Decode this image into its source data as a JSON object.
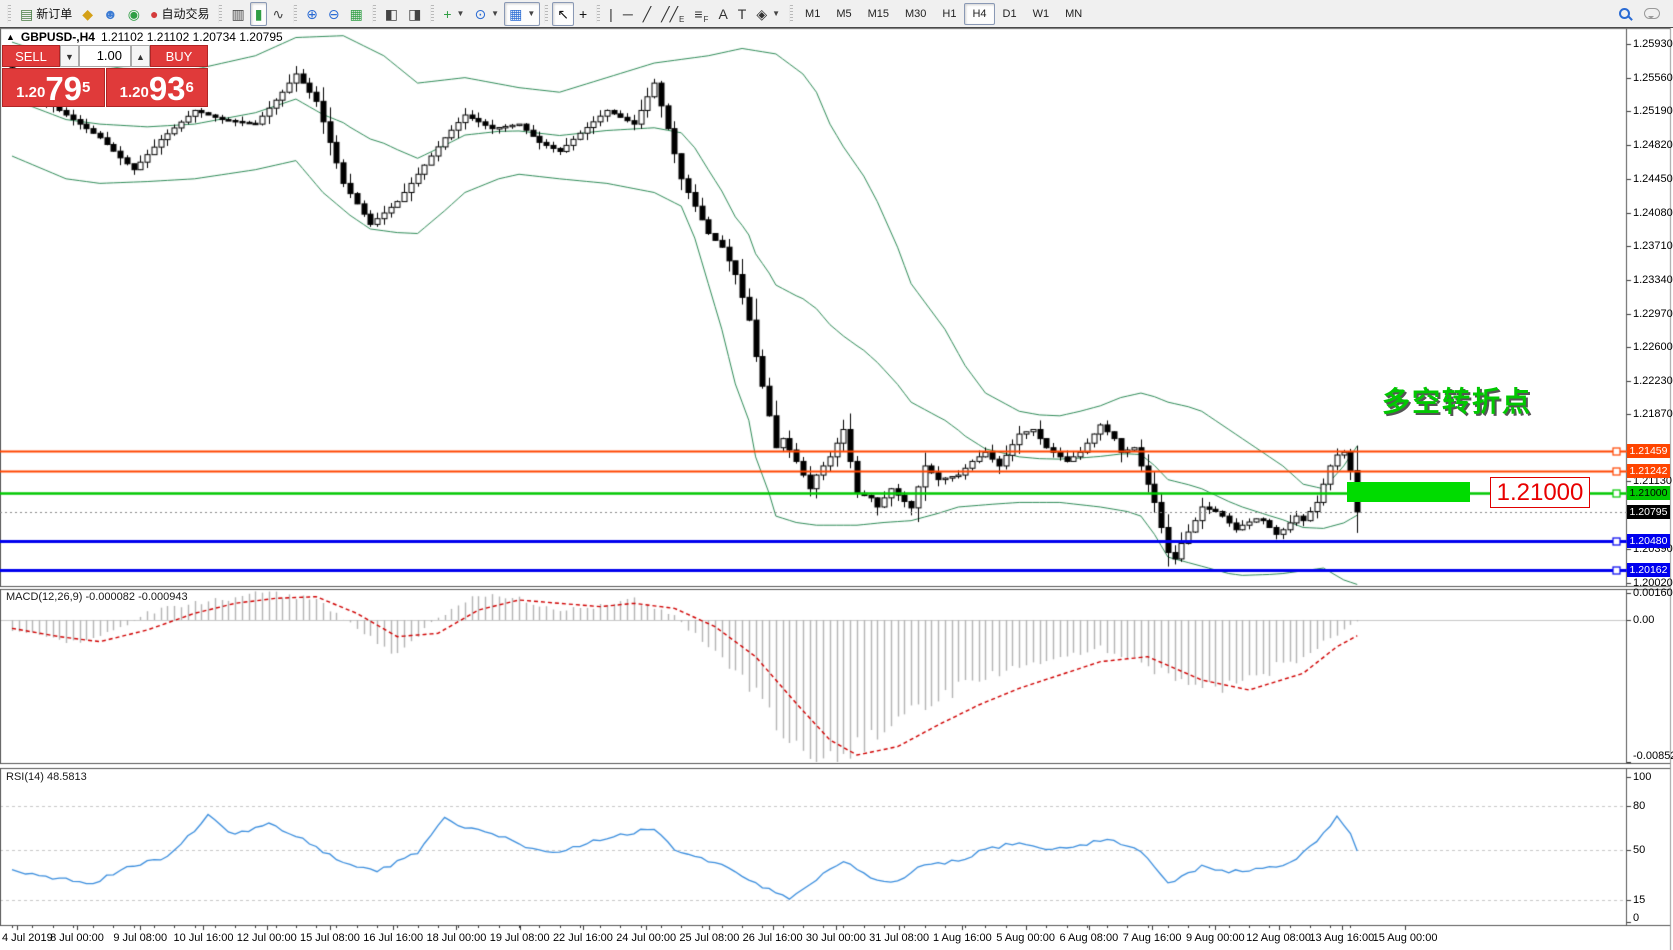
{
  "toolbar": {
    "groups": [
      {
        "items": [
          {
            "name": "new-order",
            "glyph": "▤",
            "color": "#4a7d46",
            "label": "新订单"
          },
          {
            "name": "styles",
            "glyph": "◆",
            "color": "#d4a017"
          },
          {
            "name": "community",
            "glyph": "☻",
            "color": "#3b7bd4"
          },
          {
            "name": "sound",
            "glyph": "◉",
            "color": "#2f9e44"
          },
          {
            "name": "autotrading",
            "glyph": "●",
            "color": "#d43b3b",
            "label": "自动交易"
          }
        ]
      },
      {
        "items": [
          {
            "name": "chart-bars",
            "glyph": "▥",
            "color": "#444"
          },
          {
            "name": "chart-candles",
            "glyph": "▮",
            "color": "#2f9e44",
            "active": true
          },
          {
            "name": "chart-line",
            "glyph": "∿",
            "color": "#444"
          }
        ]
      },
      {
        "items": [
          {
            "name": "zoom-in",
            "glyph": "⊕",
            "color": "#2a6bd4"
          },
          {
            "name": "zoom-out",
            "glyph": "⊖",
            "color": "#2a6bd4"
          },
          {
            "name": "tile-windows",
            "glyph": "▦",
            "color": "#2f9e44"
          }
        ]
      },
      {
        "items": [
          {
            "name": "auto-scroll",
            "glyph": "◧",
            "color": "#444"
          },
          {
            "name": "chart-shift",
            "glyph": "◨",
            "color": "#444"
          }
        ]
      },
      {
        "items": [
          {
            "name": "indicators",
            "glyph": "+",
            "color": "#2f9e44",
            "dropdown": true
          },
          {
            "name": "periods",
            "glyph": "⊙",
            "color": "#2a6bd4",
            "dropdown": true
          },
          {
            "name": "templates",
            "glyph": "▦",
            "color": "#2a6bd4",
            "dropdown": true,
            "active": true
          }
        ]
      },
      {
        "items": [
          {
            "name": "cursor",
            "glyph": "↖",
            "color": "#111",
            "active": true
          },
          {
            "name": "crosshair",
            "glyph": "+",
            "color": "#111"
          }
        ]
      },
      {
        "items": [
          {
            "name": "vertical-line",
            "glyph": "|",
            "color": "#333"
          },
          {
            "name": "horizontal-line",
            "glyph": "─",
            "color": "#333"
          },
          {
            "name": "trendline",
            "glyph": "╱",
            "color": "#333"
          },
          {
            "name": "equidistant-channel",
            "glyph": "╱╱",
            "color": "#333",
            "sub": "E"
          },
          {
            "name": "fibonacci",
            "glyph": "≡",
            "color": "#333",
            "sub": "F"
          },
          {
            "name": "text",
            "glyph": "A",
            "color": "#333"
          },
          {
            "name": "text-label",
            "glyph": "T",
            "color": "#333"
          },
          {
            "name": "arrows",
            "glyph": "◈",
            "color": "#333",
            "dropdown": true
          }
        ]
      }
    ],
    "timeframes": [
      "M1",
      "M5",
      "M15",
      "M30",
      "H1",
      "H4",
      "D1",
      "W1",
      "MN"
    ],
    "active_timeframe": "H4"
  },
  "chart": {
    "title_symbol": "GBPUSD-,H4",
    "title_ohlc": "1.21102 1.21102 1.20734 1.20795",
    "one_click": {
      "sell_label": "SELL",
      "buy_label": "BUY",
      "volume": "1.00",
      "sell_prefix": "1.20",
      "sell_big": "79",
      "sell_sup": "5",
      "buy_prefix": "1.20",
      "buy_big": "93",
      "buy_sup": "6"
    },
    "annotation_text": "多空转折点",
    "price_label_box": "1.21000",
    "current_price_value": 1.20795,
    "current_price_label": "1.20795",
    "levels": [
      {
        "price": 1.21459,
        "color": "#ff4500",
        "line_width": 2,
        "tag_text_color": "#ffffff"
      },
      {
        "price": 1.21242,
        "color": "#ff4500",
        "line_width": 2,
        "tag_text_color": "#ffffff"
      },
      {
        "price": 1.21,
        "color": "#00c800",
        "line_width": 2.5,
        "tag_text_color": "#000000"
      },
      {
        "price": 1.2048,
        "color": "#0000ee",
        "line_width": 3,
        "tag_text_color": "#ffffff"
      },
      {
        "price": 1.20162,
        "color": "#0000ee",
        "line_width": 3,
        "tag_text_color": "#ffffff"
      }
    ],
    "y_ticks": [
      1.2593,
      1.2556,
      1.2519,
      1.2482,
      1.2445,
      1.2408,
      1.2371,
      1.2334,
      1.2297,
      1.226,
      1.2223,
      1.2187,
      1.2113,
      1.2039,
      1.2002
    ]
  },
  "macd": {
    "label": "MACD(12,26,9) -0.000082 -0.000943",
    "scale_values": [
      0.001607,
      0,
      -0.008522
    ]
  },
  "rsi": {
    "label": "RSI(14) 48.5813",
    "scale_values": [
      100,
      80,
      50,
      15,
      0
    ],
    "dashed_levels": [
      80,
      50,
      15
    ]
  },
  "time_axis": [
    "4 Jul 2019",
    "8 Jul 00:00",
    "9 Jul 08:00",
    "10 Jul 16:00",
    "12 Jul 00:00",
    "15 Jul 08:00",
    "16 Jul 16:00",
    "18 Jul 00:00",
    "19 Jul 08:00",
    "22 Jul 16:00",
    "24 Jul 00:00",
    "25 Jul 08:00",
    "26 Jul 16:00",
    "30 Jul 00:00",
    "31 Jul 08:00",
    "1 Aug 16:00",
    "5 Aug 00:00",
    "6 Aug 08:00",
    "7 Aug 16:00",
    "9 Aug 00:00",
    "12 Aug 08:00",
    "13 Aug 16:00",
    "15 Aug 00:00"
  ],
  "colors": {
    "bull_body": "#ffffff",
    "bear_body": "#000000",
    "candle_outline": "#000000",
    "bollinger": "#2e8b57",
    "macd_hist": "#b4b4b4",
    "macd_signal": "#d00000",
    "rsi_line": "#3b8ede",
    "dashed_level": "#c8c8c8",
    "current_line": "#888888",
    "current_tag_bg": "#000000",
    "panel_red": "#e03a3a"
  },
  "chart_data": {
    "type": "candlestick+indicators",
    "symbol": "GBPUSD",
    "timeframe": "H4",
    "bars": 200,
    "y_axis": {
      "min": 1.2002,
      "max": 1.2593
    },
    "price_anchors": [
      [
        0,
        1.2555
      ],
      [
        6,
        1.2525
      ],
      [
        13,
        1.249
      ],
      [
        16,
        1.2468
      ],
      [
        18,
        1.2455
      ],
      [
        22,
        1.2488
      ],
      [
        27,
        1.252
      ],
      [
        31,
        1.251
      ],
      [
        36,
        1.2505
      ],
      [
        40,
        1.254
      ],
      [
        42,
        1.256
      ],
      [
        45,
        1.253
      ],
      [
        49,
        1.244
      ],
      [
        53,
        1.2395
      ],
      [
        57,
        1.242
      ],
      [
        60,
        1.245
      ],
      [
        64,
        1.249
      ],
      [
        67,
        1.2515
      ],
      [
        71,
        1.25
      ],
      [
        75,
        1.2505
      ],
      [
        78,
        1.2485
      ],
      [
        81,
        1.2475
      ],
      [
        84,
        1.2495
      ],
      [
        88,
        1.252
      ],
      [
        92,
        1.2505
      ],
      [
        95,
        1.255
      ],
      [
        97,
        1.25
      ],
      [
        99,
        1.2445
      ],
      [
        101,
        1.2415
      ],
      [
        103,
        1.2385
      ],
      [
        105,
        1.237
      ],
      [
        107,
        1.234
      ],
      [
        109,
        1.229
      ],
      [
        110,
        1.225
      ],
      [
        112,
        1.2185
      ],
      [
        113,
        1.215
      ],
      [
        114,
        1.216
      ],
      [
        116,
        1.2135
      ],
      [
        118,
        1.2105
      ],
      [
        119,
        1.212
      ],
      [
        121,
        1.214
      ],
      [
        123,
        1.217
      ],
      [
        124,
        1.2135
      ],
      [
        125,
        1.21
      ],
      [
        127,
        1.2095
      ],
      [
        128,
        1.2085
      ],
      [
        130,
        1.2105
      ],
      [
        133,
        1.2084
      ],
      [
        135,
        1.213
      ],
      [
        137,
        1.2115
      ],
      [
        140,
        1.212
      ],
      [
        142,
        1.2135
      ],
      [
        144,
        1.2145
      ],
      [
        146,
        1.213
      ],
      [
        149,
        1.2165
      ],
      [
        151,
        1.217
      ],
      [
        153,
        1.215
      ],
      [
        156,
        1.2135
      ],
      [
        158,
        1.2145
      ],
      [
        161,
        1.2175
      ],
      [
        163,
        1.216
      ],
      [
        164,
        1.2145
      ],
      [
        166,
        1.215
      ],
      [
        167,
        1.213
      ],
      [
        169,
        1.209
      ],
      [
        171,
        1.2035
      ],
      [
        172,
        1.2028
      ],
      [
        173,
        1.2045
      ],
      [
        175,
        1.207
      ],
      [
        176,
        1.2085
      ],
      [
        178,
        1.208
      ],
      [
        179,
        1.2075
      ],
      [
        181,
        1.206
      ],
      [
        182,
        1.2065
      ],
      [
        184,
        1.2072
      ],
      [
        185,
        1.207
      ],
      [
        187,
        1.2055
      ],
      [
        188,
        1.206
      ],
      [
        190,
        1.2075
      ],
      [
        191,
        1.207
      ],
      [
        193,
        1.209
      ],
      [
        195,
        1.213
      ],
      [
        196,
        1.2142
      ],
      [
        197,
        1.2145
      ],
      [
        198,
        1.2125
      ],
      [
        199,
        1.20795
      ]
    ],
    "band_upper_anchors": [
      [
        0,
        1.2595
      ],
      [
        8,
        1.2575
      ],
      [
        13,
        1.257
      ],
      [
        20,
        1.2562
      ],
      [
        27,
        1.2565
      ],
      [
        36,
        1.258
      ],
      [
        42,
        1.26
      ],
      [
        49,
        1.2602
      ],
      [
        55,
        1.258
      ],
      [
        60,
        1.255
      ],
      [
        67,
        1.2556
      ],
      [
        75,
        1.2545
      ],
      [
        81,
        1.254
      ],
      [
        88,
        1.2556
      ],
      [
        95,
        1.2572
      ],
      [
        103,
        1.258
      ],
      [
        108,
        1.2588
      ],
      [
        113,
        1.2582
      ],
      [
        117,
        1.256
      ],
      [
        119,
        1.254
      ],
      [
        121,
        1.2505
      ],
      [
        123,
        1.248
      ],
      [
        126,
        1.2448
      ],
      [
        128,
        1.242
      ],
      [
        131,
        1.237
      ],
      [
        133,
        1.233
      ],
      [
        136,
        1.23
      ],
      [
        138,
        1.228
      ],
      [
        141,
        1.224
      ],
      [
        144,
        1.221
      ],
      [
        147,
        1.2198
      ],
      [
        149,
        1.219
      ],
      [
        152,
        1.2186
      ],
      [
        155,
        1.2185
      ],
      [
        158,
        1.219
      ],
      [
        161,
        1.2196
      ],
      [
        164,
        1.2205
      ],
      [
        167,
        1.221
      ],
      [
        169,
        1.2206
      ],
      [
        171,
        1.22
      ],
      [
        174,
        1.2195
      ],
      [
        176,
        1.219
      ],
      [
        179,
        1.2175
      ],
      [
        182,
        1.216
      ],
      [
        185,
        1.2145
      ],
      [
        188,
        1.213
      ],
      [
        191,
        1.211
      ],
      [
        194,
        1.2105
      ],
      [
        197,
        1.213
      ],
      [
        199,
        1.2152
      ]
    ],
    "band_lower_anchors": [
      [
        0,
        1.247
      ],
      [
        8,
        1.2445
      ],
      [
        13,
        1.244
      ],
      [
        20,
        1.2442
      ],
      [
        27,
        1.2445
      ],
      [
        36,
        1.2455
      ],
      [
        42,
        1.2465
      ],
      [
        46,
        1.243
      ],
      [
        50,
        1.2405
      ],
      [
        53,
        1.239
      ],
      [
        57,
        1.2386
      ],
      [
        60,
        1.2385
      ],
      [
        64,
        1.241
      ],
      [
        67,
        1.243
      ],
      [
        72,
        1.2445
      ],
      [
        75,
        1.245
      ],
      [
        81,
        1.2445
      ],
      [
        88,
        1.244
      ],
      [
        95,
        1.243
      ],
      [
        99,
        1.2415
      ],
      [
        101,
        1.238
      ],
      [
        103,
        1.233
      ],
      [
        105,
        1.228
      ],
      [
        107,
        1.222
      ],
      [
        109,
        1.218
      ],
      [
        110,
        1.214
      ],
      [
        112,
        1.21
      ],
      [
        113,
        1.2075
      ],
      [
        116,
        1.2068
      ],
      [
        119,
        1.2065
      ],
      [
        125,
        1.2065
      ],
      [
        129,
        1.2068
      ],
      [
        133,
        1.207
      ],
      [
        137,
        1.2078
      ],
      [
        140,
        1.2085
      ],
      [
        145,
        1.2088
      ],
      [
        149,
        1.209
      ],
      [
        155,
        1.209
      ],
      [
        161,
        1.2085
      ],
      [
        165,
        1.208
      ],
      [
        167,
        1.2075
      ],
      [
        169,
        1.2055
      ],
      [
        171,
        1.203
      ],
      [
        174,
        1.2024
      ],
      [
        176,
        1.202
      ],
      [
        180,
        1.2012
      ],
      [
        182,
        1.201
      ],
      [
        186,
        1.2011
      ],
      [
        188,
        1.2012
      ],
      [
        191,
        1.2015
      ],
      [
        194,
        1.2018
      ],
      [
        197,
        1.2005
      ],
      [
        199,
        1.2
      ]
    ],
    "macd_scale": {
      "max": 0.001607,
      "min": -0.008522
    },
    "macd_anchors": [
      [
        0,
        -0.0005,
        -0.0005
      ],
      [
        7,
        -0.0013,
        -0.001
      ],
      [
        13,
        -0.001,
        -0.0013
      ],
      [
        20,
        0.0004,
        -0.0006
      ],
      [
        27,
        0.001,
        0.0004
      ],
      [
        33,
        0.0014,
        0.001
      ],
      [
        39,
        0.0016,
        0.0013
      ],
      [
        45,
        0.0012,
        0.0014
      ],
      [
        51,
        -0.0005,
        0.0004
      ],
      [
        57,
        -0.002,
        -0.001
      ],
      [
        63,
        0.0002,
        -0.0008
      ],
      [
        69,
        0.0016,
        0.0006
      ],
      [
        75,
        0.0013,
        0.0012
      ],
      [
        81,
        0.0006,
        0.001
      ],
      [
        87,
        0.0009,
        0.0008
      ],
      [
        92,
        0.0012,
        0.001
      ],
      [
        98,
        0.0002,
        0.0007
      ],
      [
        104,
        -0.0018,
        -0.0004
      ],
      [
        110,
        -0.0045,
        -0.0022
      ],
      [
        116,
        -0.0078,
        -0.005
      ],
      [
        121,
        -0.0085,
        -0.0072
      ],
      [
        125,
        -0.0076,
        -0.0081
      ],
      [
        131,
        -0.0058,
        -0.0076
      ],
      [
        137,
        -0.0046,
        -0.0063
      ],
      [
        143,
        -0.0036,
        -0.0051
      ],
      [
        149,
        -0.0028,
        -0.0041
      ],
      [
        155,
        -0.0022,
        -0.0033
      ],
      [
        161,
        -0.0017,
        -0.0025
      ],
      [
        168,
        -0.0028,
        -0.0022
      ],
      [
        176,
        -0.0042,
        -0.0036
      ],
      [
        183,
        -0.0036,
        -0.0042
      ],
      [
        191,
        -0.0022,
        -0.0032
      ],
      [
        196,
        -0.0009,
        -0.0016
      ],
      [
        199,
        -8.2e-05,
        -0.000943
      ]
    ],
    "rsi_scale": {
      "min": 0,
      "max": 100
    },
    "rsi_anchors": [
      [
        0,
        35
      ],
      [
        7,
        30
      ],
      [
        12,
        27
      ],
      [
        17,
        38
      ],
      [
        23,
        45
      ],
      [
        29,
        73
      ],
      [
        33,
        60
      ],
      [
        38,
        68
      ],
      [
        44,
        55
      ],
      [
        49,
        40
      ],
      [
        54,
        35
      ],
      [
        60,
        48
      ],
      [
        64,
        72
      ],
      [
        67,
        65
      ],
      [
        72,
        60
      ],
      [
        76,
        52
      ],
      [
        81,
        48
      ],
      [
        85,
        55
      ],
      [
        90,
        60
      ],
      [
        95,
        65
      ],
      [
        98,
        50
      ],
      [
        103,
        42
      ],
      [
        107,
        35
      ],
      [
        112,
        22
      ],
      [
        115,
        17
      ],
      [
        119,
        30
      ],
      [
        123,
        42
      ],
      [
        127,
        30
      ],
      [
        131,
        28
      ],
      [
        135,
        40
      ],
      [
        140,
        42
      ],
      [
        144,
        50
      ],
      [
        149,
        55
      ],
      [
        153,
        50
      ],
      [
        158,
        52
      ],
      [
        162,
        58
      ],
      [
        167,
        48
      ],
      [
        171,
        27
      ],
      [
        176,
        38
      ],
      [
        180,
        35
      ],
      [
        184,
        36
      ],
      [
        189,
        40
      ],
      [
        193,
        55
      ],
      [
        196,
        73
      ],
      [
        198,
        60
      ],
      [
        199,
        48.58
      ]
    ]
  }
}
